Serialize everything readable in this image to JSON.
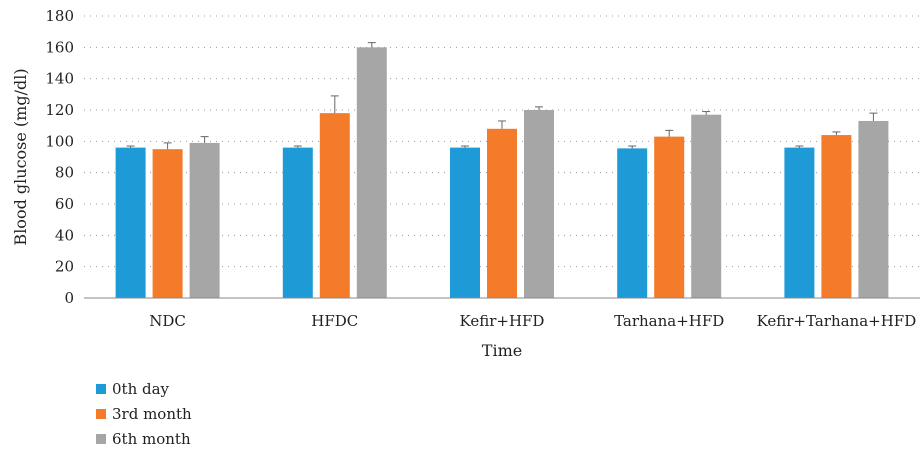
{
  "chart_data": {
    "type": "bar",
    "categories": [
      "NDC",
      "HFDC",
      "Kefir+HFD",
      "Tarhana+HFD",
      "Kefir+Tarhana+HFD"
    ],
    "series": [
      {
        "name": "0th day",
        "color": "#1e9bd7",
        "values": [
          96,
          96,
          96,
          95.5,
          96
        ],
        "errors": [
          1,
          1,
          1,
          1.5,
          1
        ]
      },
      {
        "name": "3rd month",
        "color": "#f47b2a",
        "values": [
          95,
          118,
          108,
          103,
          104
        ],
        "errors": [
          4,
          11,
          5,
          4,
          2
        ]
      },
      {
        "name": "6th month",
        "color": "#a6a6a6",
        "values": [
          99,
          160,
          120,
          117,
          113
        ],
        "errors": [
          4,
          3,
          2,
          2,
          5
        ]
      }
    ],
    "xlabel": "Time",
    "ylabel": "Blood glucose (mg/dl)",
    "ylim": [
      0,
      180
    ],
    "yticks": [
      "0",
      "20",
      "40",
      "60",
      "80",
      "100",
      "120",
      "140",
      "160",
      "180"
    ],
    "grid": "dotted horizontal",
    "legend_position": "bottom-left"
  }
}
